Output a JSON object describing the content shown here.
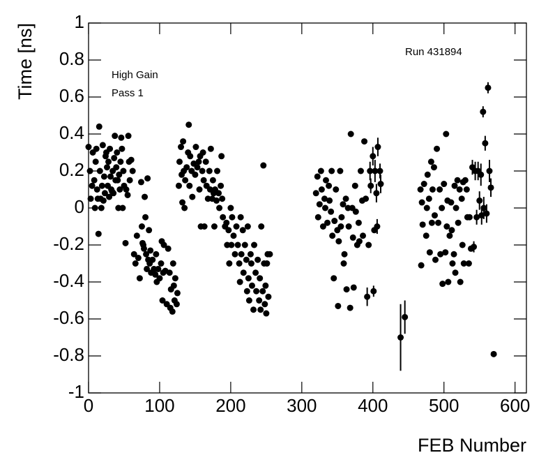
{
  "chart_data": {
    "type": "scatter",
    "xlabel": "FEB Number",
    "ylabel": "Time [ns]",
    "annotations": [
      "Run 431894",
      "High Gain",
      "Pass 1"
    ],
    "xlim": [
      0,
      616
    ],
    "ylim": [
      -1,
      1
    ],
    "xticks": [
      0,
      100,
      200,
      300,
      400,
      500,
      600
    ],
    "yticks": [
      -1,
      -0.8,
      -0.6,
      -0.4,
      -0.2,
      0,
      0.2,
      0.4,
      0.6,
      0.8,
      1
    ],
    "grid": false,
    "series": [
      {
        "color": "#000000",
        "x": [
          0,
          2,
          3,
          5,
          6,
          8,
          9,
          10,
          11,
          12,
          13,
          14,
          15,
          16,
          17,
          18,
          19,
          20,
          21,
          22,
          23,
          24,
          25,
          26,
          27,
          28,
          29,
          30,
          31,
          32,
          33,
          34,
          35,
          36,
          37,
          38,
          39,
          40,
          41,
          42,
          43,
          44,
          45,
          46,
          47,
          48,
          49,
          50,
          52,
          53,
          55,
          56,
          57,
          58,
          60,
          62,
          64,
          66,
          68,
          70,
          72,
          74,
          75,
          76,
          77,
          78,
          79,
          80,
          81,
          82,
          83,
          84,
          85,
          86,
          87,
          88,
          90,
          92,
          94,
          95,
          96,
          98,
          100,
          102,
          103,
          104,
          105,
          106,
          108,
          110,
          112,
          114,
          115,
          116,
          118,
          119,
          120,
          121,
          122,
          124,
          125,
          127,
          128,
          130,
          131,
          132,
          133,
          134,
          135,
          136,
          138,
          140,
          141,
          142,
          143,
          145,
          146,
          148,
          150,
          151,
          153,
          155,
          156,
          157,
          158,
          160,
          161,
          162,
          163,
          165,
          166,
          168,
          170,
          171,
          172,
          174,
          175,
          176,
          177,
          178,
          180,
          181,
          183,
          184,
          186,
          187,
          188,
          189,
          192,
          194,
          195,
          197,
          198,
          200,
          201,
          202,
          204,
          206,
          208,
          210,
          212,
          213,
          214,
          215,
          217,
          218,
          220,
          222,
          223,
          224,
          225,
          226,
          228,
          229,
          230,
          232,
          233,
          235,
          236,
          238,
          240,
          241,
          242,
          243,
          245,
          246,
          247,
          248,
          249,
          250,
          251,
          252,
          253,
          255,
          320,
          322,
          323,
          325,
          327,
          328,
          330,
          332,
          333,
          334,
          336,
          338,
          339,
          341,
          342,
          343,
          345,
          346,
          348,
          350,
          351,
          352,
          354,
          355,
          356,
          358,
          359,
          360,
          362,
          363,
          365,
          366,
          368,
          369,
          371,
          372,
          373,
          375,
          376,
          378,
          380,
          381,
          383,
          385,
          386,
          388,
          390,
          394,
          402,
          467,
          468,
          469,
          470,
          472,
          475,
          476,
          477,
          479,
          480,
          482,
          483,
          484,
          486,
          487,
          488,
          490,
          492,
          494,
          495,
          497,
          498,
          500,
          502,
          503,
          504,
          505,
          506,
          508,
          510,
          511,
          512,
          514,
          515,
          516,
          517,
          519,
          520,
          522,
          523,
          525,
          526,
          527,
          528,
          530,
          532,
          533,
          535,
          536,
          538
        ],
        "values": [
          0.33,
          0.2,
          0.05,
          0.12,
          0.3,
          0.15,
          0,
          0.25,
          0.32,
          0.1,
          0.05,
          -0.14,
          0.44,
          0.2,
          0.05,
          0,
          0.12,
          0.34,
          0.04,
          0.17,
          0.08,
          0.28,
          0.3,
          0.22,
          0.12,
          0.25,
          0.06,
          0.32,
          0.17,
          0.1,
          0.09,
          0.2,
          0.08,
          0.27,
          0.39,
          0.15,
          0.22,
          0.3,
          0.15,
          0,
          0.18,
          0.1,
          0.25,
          0.38,
          0.32,
          0,
          0.2,
          0.12,
          -0.19,
          0.1,
          0.07,
          0.39,
          0.25,
          0.15,
          0.26,
          0.2,
          -0.25,
          -0.3,
          -0.15,
          -0.27,
          -0.38,
          0.14,
          -0.1,
          -0.19,
          -0.2,
          -0.22,
          0.06,
          -0.05,
          -0.25,
          -0.33,
          0.16,
          -0.28,
          -0.12,
          -0.3,
          -0.23,
          -0.35,
          -0.28,
          -0.33,
          -0.36,
          -0.25,
          -0.4,
          -0.33,
          -0.38,
          -0.3,
          -0.18,
          -0.5,
          -0.35,
          -0.2,
          -0.34,
          -0.52,
          -0.22,
          -0.35,
          -0.54,
          -0.44,
          -0.56,
          -0.3,
          -0.42,
          -0.5,
          -0.38,
          -0.52,
          -0.46,
          0.12,
          0.25,
          0.33,
          0.18,
          0.03,
          0.36,
          0.2,
          0,
          0.15,
          0.22,
          0.3,
          0.45,
          0.12,
          0.28,
          0.2,
          0.06,
          0.24,
          0.18,
          0.33,
          0.22,
          0.25,
          0.1,
          0.28,
          -0.1,
          0.2,
          0.3,
          0.15,
          -0.1,
          0.25,
          0.12,
          0.05,
          0.2,
          0.1,
          0.32,
          0.05,
          0.15,
          0.08,
          -0.1,
          0.1,
          0.04,
          0.2,
          0.08,
          0,
          0.12,
          0.28,
          0.05,
          -0.05,
          -0.1,
          -0.08,
          -0.2,
          -0.12,
          -0.3,
          0,
          -0.2,
          -0.05,
          -0.15,
          -0.25,
          -0.1,
          -0.2,
          -0.3,
          -0.4,
          -0.05,
          -0.25,
          -0.12,
          -0.35,
          -0.2,
          -0.28,
          -0.45,
          -0.1,
          -0.38,
          -0.5,
          -0.25,
          -0.3,
          -0.42,
          -0.55,
          -0.2,
          -0.35,
          -0.45,
          -0.28,
          -0.5,
          -0.38,
          -0.55,
          -0.1,
          -0.45,
          0.23,
          -0.3,
          -0.52,
          -0.42,
          -0.57,
          -0.3,
          -0.25,
          -0.48,
          -0.25,
          0.08,
          0.17,
          -0.05,
          0.02,
          0.2,
          0.1,
          -0.1,
          0.05,
          0,
          0.15,
          -0.08,
          0.12,
          0.04,
          -0.02,
          0.2,
          -0.15,
          -0.38,
          -0.07,
          0.1,
          -0.12,
          -0.53,
          -0.18,
          0.2,
          -0.1,
          -0.05,
          0.02,
          -0.3,
          -0.25,
          0.05,
          -0.44,
          0,
          -0.1,
          -0.54,
          0.4,
          0,
          -0.16,
          -0.43,
          0.12,
          -0.02,
          -0.2,
          -0.08,
          -0.18,
          0.2,
          0.04,
          -0.15,
          0.36,
          0.05,
          -0.2,
          -0.12,
          0.1,
          -0.31,
          0.03,
          -0.09,
          0.13,
          -0.15,
          0,
          0.18,
          0.05,
          -0.24,
          0.25,
          -0.08,
          0.1,
          0.22,
          -0.04,
          -0.28,
          0.32,
          -0.08,
          0.1,
          -0.25,
          0,
          -0.41,
          0.13,
          -0.24,
          0.4,
          -0.1,
          0.04,
          -0.4,
          -0.15,
          0.03,
          -0.12,
          -0.3,
          -0.25,
          0.12,
          -0.35,
          0,
          0.15,
          -0.08,
          0.1,
          -0.4,
          0.05,
          -0.2,
          0.14,
          -0.3,
          0.15,
          0.1,
          -0.05,
          -0.3,
          -0.05,
          -0.22
        ]
      },
      {
        "color": "#000000",
        "x": [
          392,
          396,
          397,
          400,
          401,
          403,
          405,
          406,
          407,
          410,
          411,
          439,
          445,
          540,
          542,
          544,
          546,
          548,
          550,
          552,
          553,
          555,
          556,
          558,
          560,
          562,
          564,
          566,
          570
        ],
        "values": [
          -0.48,
          0.2,
          0.12,
          0.28,
          -0.45,
          0.2,
          0.08,
          -0.1,
          0.33,
          0.2,
          0.13,
          -0.7,
          -0.59,
          0.22,
          -0.21,
          0.2,
          -0.05,
          0.2,
          0.04,
          0.18,
          -0.04,
          0.52,
          0,
          0.35,
          -0.03,
          0.65,
          0.2,
          0.11,
          -0.79
        ],
        "errors": [
          0.05,
          0.05,
          0.04,
          0.05,
          0.03,
          0.06,
          0.05,
          0.04,
          0.05,
          0.04,
          0.05,
          0.18,
          0.09,
          0.04,
          0.03,
          0.05,
          0.04,
          0.05,
          0.05,
          0.06,
          0.05,
          0.03,
          0.06,
          0.04,
          0.05,
          0.03,
          0.06,
          0.05,
          0.01
        ]
      }
    ]
  }
}
